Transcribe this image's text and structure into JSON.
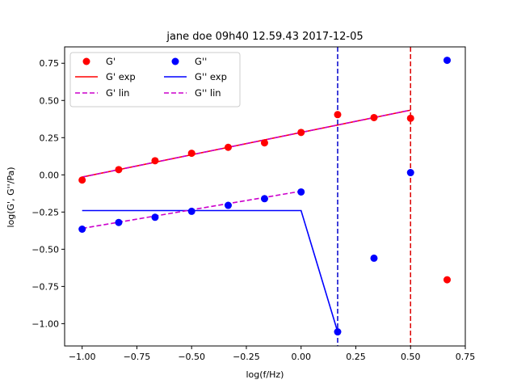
{
  "chart_data": {
    "type": "scatter",
    "title": "jane doe 09h40 12.59.43 2017-12-05",
    "xlabel": "log(f/Hz)",
    "ylabel": "log(G', G''/Pa)",
    "xlim": [
      -1.08,
      0.75
    ],
    "ylim": [
      -1.15,
      0.86
    ],
    "xticks": [
      -1.0,
      -0.75,
      -0.5,
      -0.25,
      0.0,
      0.25,
      0.5,
      0.75
    ],
    "xtick_labels": [
      "−1.00",
      "−0.75",
      "−0.50",
      "−0.25",
      "0.00",
      "0.25",
      "0.50",
      "0.75"
    ],
    "yticks": [
      -1.0,
      -0.75,
      -0.5,
      -0.25,
      0.0,
      0.25,
      0.5,
      0.75
    ],
    "ytick_labels": [
      "−1.00",
      "−0.75",
      "−0.50",
      "−0.25",
      "0.00",
      "0.25",
      "0.50",
      "0.75"
    ],
    "grid": false,
    "legend": {
      "placement": "top-left",
      "columns": 2
    },
    "series": [
      {
        "name": "G'",
        "kind": "points",
        "color": "#ff0000",
        "x": [
          -1.0,
          -0.833,
          -0.667,
          -0.5,
          -0.333,
          -0.167,
          0.0,
          0.167,
          0.333,
          0.5,
          0.667
        ],
        "y": [
          -0.035,
          0.035,
          0.095,
          0.145,
          0.185,
          0.215,
          0.285,
          0.405,
          0.385,
          0.38,
          -0.705
        ]
      },
      {
        "name": "G''",
        "kind": "points",
        "color": "#0000ff",
        "x": [
          -1.0,
          -0.833,
          -0.667,
          -0.5,
          -0.333,
          -0.167,
          0.0,
          0.167,
          0.333,
          0.5,
          0.667
        ],
        "y": [
          -0.365,
          -0.32,
          -0.285,
          -0.245,
          -0.205,
          -0.16,
          -0.115,
          -1.055,
          -0.56,
          0.015,
          0.77
        ]
      },
      {
        "name": "G' exp",
        "kind": "line",
        "color": "#ff0000",
        "dash": "solid",
        "x": [
          -1.0,
          0.5
        ],
        "y": [
          -0.015,
          0.435
        ]
      },
      {
        "name": "G'' exp",
        "kind": "line",
        "color": "#0000ff",
        "dash": "solid",
        "x": [
          -1.0,
          0.0,
          0.167
        ],
        "y": [
          -0.24,
          -0.24,
          -1.055
        ]
      },
      {
        "name": "G' lin",
        "kind": "line",
        "color": "#cc00cc",
        "dash": "dashed",
        "x": [
          -1.0,
          0.5
        ],
        "y": [
          -0.015,
          0.435
        ]
      },
      {
        "name": "G'' lin",
        "kind": "line",
        "color": "#cc00cc",
        "dash": "dashed",
        "x": [
          -1.0,
          0.0
        ],
        "y": [
          -0.36,
          -0.11
        ]
      }
    ],
    "vlines": [
      {
        "x": 0.167,
        "color": "#0000cc",
        "dash": "dashed"
      },
      {
        "x": 0.5,
        "color": "#dd0000",
        "dash": "dashed"
      }
    ],
    "legend_order": [
      "G'",
      "G''",
      "G' exp",
      "G'' exp",
      "G' lin",
      "G'' lin"
    ]
  }
}
